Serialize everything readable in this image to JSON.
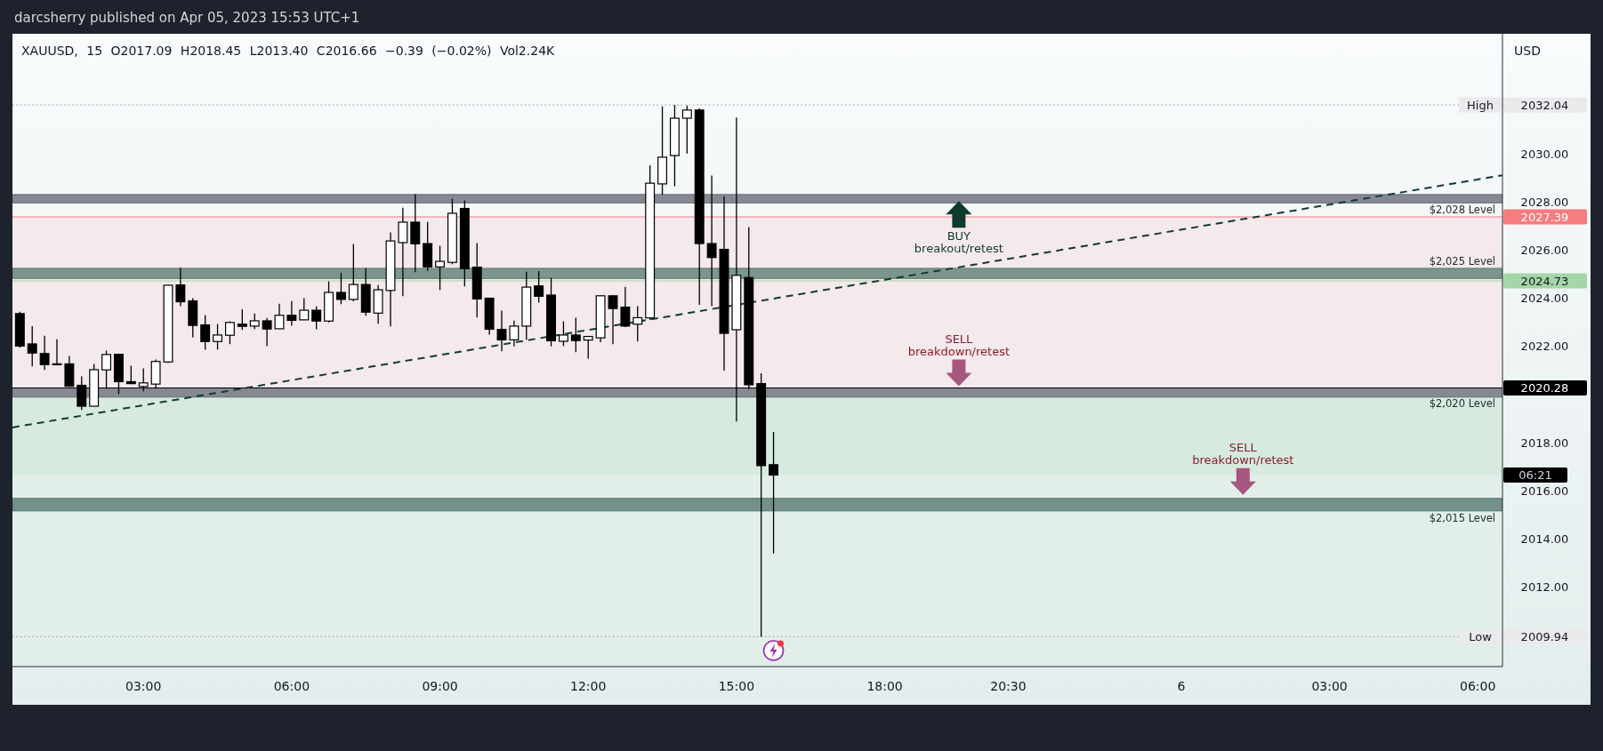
{
  "chart_data": {
    "type": "candlestick",
    "title": "darcsherry published on Apr 05, 2023 15:53 UTC+1",
    "subtitle": "XAUUSD, 15 O2017.09 H2018.45 L2013.40 C2016.66 −0.39 (−0.02%) Vol2.24K",
    "ylabel": "USD",
    "color": "#000000",
    "x": [
      "2023-04-05T00:30",
      "2023-04-05T00:45",
      "2023-04-05T01:00",
      "2023-04-05T01:15",
      "2023-04-05T01:30",
      "2023-04-05T01:45",
      "2023-04-05T02:00",
      "2023-04-05T02:15",
      "2023-04-05T02:30",
      "2023-04-05T02:45",
      "2023-04-05T03:00",
      "2023-04-05T03:15",
      "2023-04-05T03:30",
      "2023-04-05T03:45",
      "2023-04-05T04:00",
      "2023-04-05T04:15",
      "2023-04-05T04:30",
      "2023-04-05T04:45",
      "2023-04-05T05:00",
      "2023-04-05T05:15",
      "2023-04-05T05:30",
      "2023-04-05T05:45",
      "2023-04-05T06:00",
      "2023-04-05T06:15",
      "2023-04-05T06:30",
      "2023-04-05T06:45",
      "2023-04-05T07:00",
      "2023-04-05T07:15",
      "2023-04-05T07:30",
      "2023-04-05T07:45",
      "2023-04-05T08:00",
      "2023-04-05T08:15",
      "2023-04-05T08:30",
      "2023-04-05T08:45",
      "2023-04-05T09:00",
      "2023-04-05T09:15",
      "2023-04-05T09:30",
      "2023-04-05T09:45",
      "2023-04-05T10:00",
      "2023-04-05T10:15",
      "2023-04-05T10:30",
      "2023-04-05T10:45",
      "2023-04-05T11:00",
      "2023-04-05T11:15",
      "2023-04-05T11:30",
      "2023-04-05T11:45",
      "2023-04-05T12:00",
      "2023-04-05T12:15",
      "2023-04-05T12:30",
      "2023-04-05T12:45",
      "2023-04-05T13:00",
      "2023-04-05T13:15",
      "2023-04-05T13:30",
      "2023-04-05T13:45",
      "2023-04-05T14:00",
      "2023-04-05T14:15",
      "2023-04-05T14:30",
      "2023-04-05T14:45",
      "2023-04-05T15:00",
      "2023-04-05T15:15",
      "2023-04-05T15:30",
      "2023-04-05T15:45"
    ],
    "ohlc": [
      [
        2023.37,
        2023.45,
        2021.95,
        2022.02
      ],
      [
        2022.11,
        2022.85,
        2021.18,
        2021.73
      ],
      [
        2021.71,
        2022.45,
        2021.03,
        2021.25
      ],
      [
        2021.28,
        2022.3,
        2021.27,
        2021.27
      ],
      [
        2021.28,
        2021.61,
        2020.33,
        2020.35
      ],
      [
        2020.39,
        2020.76,
        2019.37,
        2019.52
      ],
      [
        2019.52,
        2021.28,
        2019.52,
        2021.04
      ],
      [
        2021.03,
        2021.83,
        2020.25,
        2021.67
      ],
      [
        2021.68,
        2021.68,
        2020.02,
        2020.54
      ],
      [
        2020.54,
        2021.2,
        2020.44,
        2020.46
      ],
      [
        2020.34,
        2021.09,
        2020.14,
        2020.49
      ],
      [
        2020.44,
        2021.46,
        2020.25,
        2021.38
      ],
      [
        2021.36,
        2024.55,
        2021.31,
        2024.55
      ],
      [
        2024.56,
        2025.28,
        2023.68,
        2023.86
      ],
      [
        2023.9,
        2024.01,
        2022.38,
        2022.88
      ],
      [
        2022.9,
        2023.31,
        2021.87,
        2022.21
      ],
      [
        2022.21,
        2022.94,
        2021.87,
        2022.48
      ],
      [
        2022.47,
        2023.05,
        2022.1,
        2023
      ],
      [
        2022.93,
        2023.55,
        2022.69,
        2022.84
      ],
      [
        2022.85,
        2023.37,
        2022.73,
        2023.07
      ],
      [
        2023.07,
        2023.19,
        2022.02,
        2022.73
      ],
      [
        2022.74,
        2023.78,
        2022.74,
        2023.3
      ],
      [
        2023.3,
        2023.89,
        2022.87,
        2023.09
      ],
      [
        2023.11,
        2024.01,
        2023.11,
        2023.51
      ],
      [
        2023.51,
        2023.67,
        2022.72,
        2023.06
      ],
      [
        2023.06,
        2024.71,
        2023,
        2024.25
      ],
      [
        2024.25,
        2025.06,
        2023.76,
        2023.96
      ],
      [
        2023.96,
        2026.26,
        2023.88,
        2024.58
      ],
      [
        2024.58,
        2025.26,
        2023.28,
        2023.43
      ],
      [
        2023.39,
        2024.56,
        2022.95,
        2024.36
      ],
      [
        2024.33,
        2026.74,
        2022.84,
        2026.39
      ],
      [
        2026.32,
        2027.77,
        2024.09,
        2027.17
      ],
      [
        2027.17,
        2028.33,
        2025.09,
        2026.27
      ],
      [
        2026.28,
        2027.18,
        2025.15,
        2025.31
      ],
      [
        2025.31,
        2026.19,
        2024.35,
        2025.54
      ],
      [
        2025.5,
        2028.14,
        2025.42,
        2027.54
      ],
      [
        2027.74,
        2028.07,
        2024.5,
        2025.24
      ],
      [
        2025.3,
        2026.3,
        2023.21,
        2023.98
      ],
      [
        2024.01,
        2024.01,
        2022.5,
        2022.72
      ],
      [
        2022.71,
        2023.49,
        2021.8,
        2022.28
      ],
      [
        2022.28,
        2023.08,
        2022.01,
        2022.85
      ],
      [
        2022.85,
        2025.11,
        2022.28,
        2024.47
      ],
      [
        2024.52,
        2025.14,
        2023.83,
        2024.09
      ],
      [
        2024.14,
        2024.86,
        2022.01,
        2022.24
      ],
      [
        2022.22,
        2023.05,
        2022.02,
        2022.48
      ],
      [
        2022.48,
        2023.2,
        2021.77,
        2022.25
      ],
      [
        2022.27,
        2022.42,
        2021.5,
        2022.42
      ],
      [
        2022.36,
        2024.11,
        2022.18,
        2024.11
      ],
      [
        2024.11,
        2024.11,
        2022.1,
        2023.58
      ],
      [
        2023.64,
        2024.48,
        2022.81,
        2022.85
      ],
      [
        2022.93,
        2023.68,
        2022.21,
        2023.2
      ],
      [
        2023.19,
        2029.53,
        2023.11,
        2028.79
      ],
      [
        2028.76,
        2031.98,
        2028.31,
        2029.87
      ],
      [
        2029.94,
        2032.04,
        2028.66,
        2031.49
      ],
      [
        2031.49,
        2032.02,
        2030.02,
        2031.83
      ],
      [
        2031.83,
        2031.9,
        2023.73,
        2026.28
      ],
      [
        2026.28,
        2029.11,
        2023.68,
        2025.7
      ],
      [
        2026.04,
        2028.24,
        2021,
        2022.55
      ],
      [
        2022.7,
        2031.52,
        2018.89,
        2024.96
      ],
      [
        2024.87,
        2026.97,
        2020.23,
        2020.41
      ],
      [
        2020.46,
        2020.89,
        2009.94,
        2017.05
      ],
      [
        2017.09,
        2018.45,
        2013.4,
        2016.66
      ]
    ],
    "xlim": [
      "2023-04-05T00:21",
      "2023-04-06T06:30"
    ],
    "xticks": [
      {
        "value": "2023-04-05T03:00",
        "label": "03:00"
      },
      {
        "value": "2023-04-05T06:00",
        "label": "06:00"
      },
      {
        "value": "2023-04-05T09:00",
        "label": "09:00"
      },
      {
        "value": "2023-04-05T12:00",
        "label": "12:00"
      },
      {
        "value": "2023-04-05T15:00",
        "label": "15:00"
      },
      {
        "value": "2023-04-05T18:00",
        "label": "18:00"
      },
      {
        "value": "2023-04-05T20:30",
        "label": "20:30"
      },
      {
        "value": "2023-04-06",
        "label": "6"
      },
      {
        "value": "2023-04-06T03:00",
        "label": "03:00"
      },
      {
        "value": "2023-04-06T06:00",
        "label": "06:00"
      }
    ],
    "ylim": [
      2008.7,
      2035
    ],
    "yticks": [
      {
        "value": 2012,
        "label": "2012.00"
      },
      {
        "value": 2014,
        "label": "2014.00"
      },
      {
        "value": 2016,
        "label": "2016.00"
      },
      {
        "value": 2018,
        "label": "2018.00"
      },
      {
        "value": 2022,
        "label": "2022.00"
      },
      {
        "value": 2024,
        "label": "2024.00"
      },
      {
        "value": 2026,
        "label": "2026.00"
      },
      {
        "value": 2028,
        "label": "2028.00"
      },
      {
        "value": 2030,
        "label": "2030.00"
      },
      2032.04,
      2027.39,
      2024.73,
      2020.28,
      2009.94
    ],
    "series": [
      {
        "type": "line",
        "x": [
          "2023-04-05T00:21",
          "2023-04-06T06:30"
        ],
        "values": [
          2018.64,
          2029.12
        ],
        "color": "#123b34",
        "line_style": "dashed"
      }
    ],
    "bands": [
      {
        "axis": "y",
        "from": 2008.7,
        "to": 2020.28,
        "color": "#e2efe9"
      },
      {
        "axis": "y",
        "from": 2016.66,
        "to": 2020.28,
        "color": "#d6eadf"
      },
      {
        "axis": "y",
        "from": 2020.28,
        "to": 2027.39,
        "color": "#f4e9eb"
      },
      {
        "axis": "y",
        "from": 2027.97,
        "to": 2028.32,
        "label": "$2,028 Level",
        "color": "#868992"
      },
      {
        "axis": "y",
        "from": 2024.83,
        "to": 2025.25,
        "label": "$2,025 Level",
        "color": "#7b968f"
      },
      {
        "axis": "y",
        "from": 2019.9,
        "to": 2020.28,
        "label": "$2,020 Level",
        "color": "#868992"
      },
      {
        "axis": "y",
        "from": 2015.17,
        "to": 2015.69,
        "label": "$2,015 Level",
        "color": "#73918a"
      }
    ],
    "ref_lines": [
      {
        "axis": "y",
        "value": 2032.04,
        "label": "High",
        "color": "#9598a1",
        "line_style": "dotted"
      },
      {
        "axis": "y",
        "value": 2027.39,
        "color": "#f77c80"
      },
      {
        "axis": "y",
        "value": 2024.73,
        "color": "#a5d6a7"
      },
      {
        "axis": "y",
        "value": 2020.28,
        "color": "#000000"
      },
      {
        "axis": "y",
        "value": 2009.94,
        "label": "Low",
        "color": "#9598a1",
        "line_style": "dotted"
      }
    ],
    "annotations": [
      "06:21",
      {
        "text": "BUY\nbreakout/retest",
        "x": "2023-04-05T19:30",
        "y": 2028.05
      },
      {
        "text": "SELL\nbreakdown/retest",
        "x": "2023-04-05T19:30",
        "y": 2020.35
      },
      {
        "text": "SELL\nbreakdown/retest",
        "x": "2023-04-06T01:15",
        "y": 2015.84
      }
    ]
  }
}
